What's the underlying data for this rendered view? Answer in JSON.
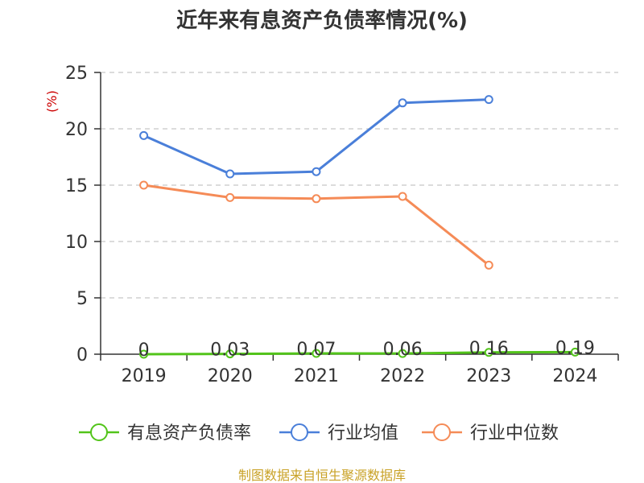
{
  "chart_data": {
    "type": "line",
    "title": "近年来有息资产负债率情况(%)",
    "ylabel": "(%)",
    "xlabel": "",
    "categories": [
      "2019",
      "2020",
      "2021",
      "2022",
      "2023",
      "2024"
    ],
    "ylim": [
      0,
      25
    ],
    "yticks": [
      0,
      5,
      10,
      15,
      20,
      25
    ],
    "grid": true,
    "legend_position": "bottom",
    "series": [
      {
        "name": "有息资产负债率",
        "color": "#52c41a",
        "values": [
          0,
          0.03,
          0.07,
          0.06,
          0.16,
          0.19
        ],
        "data_labels": [
          "0",
          "0.03",
          "0.07",
          "0.06",
          "0.16",
          "0.19"
        ]
      },
      {
        "name": "行业均值",
        "color": "#4a7fd9",
        "values": [
          19.4,
          16.0,
          16.2,
          22.3,
          22.6,
          null
        ]
      },
      {
        "name": "行业中位数",
        "color": "#f58b57",
        "values": [
          15.0,
          13.9,
          13.8,
          14.0,
          7.9,
          null
        ]
      }
    ]
  },
  "footer": {
    "source": "制图数据来自恒生聚源数据库"
  }
}
